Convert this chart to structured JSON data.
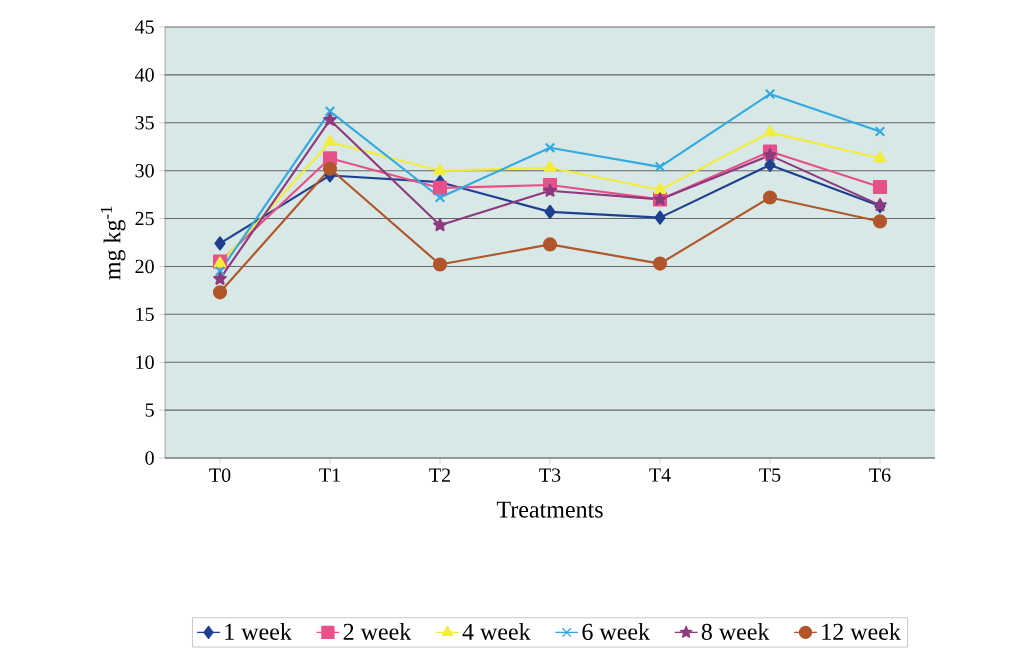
{
  "chart_data": {
    "type": "line",
    "xlabel": "Treatments",
    "ylabel": "mg kg$^{-1}$",
    "categories": [
      "T0",
      "T1",
      "T2",
      "T3",
      "T4",
      "T5",
      "T6"
    ],
    "ylim": [
      0,
      45
    ],
    "yticks": [
      0,
      5,
      10,
      15,
      20,
      25,
      30,
      35,
      40,
      45
    ],
    "grid": "y",
    "legend": "bottom",
    "line_style": "solid",
    "series": [
      {
        "name": "1 week",
        "color": "#1f3f8f",
        "marker": "diamond",
        "values": [
          22.4,
          29.5,
          28.8,
          25.7,
          25.1,
          30.6,
          26.3
        ]
      },
      {
        "name": "2 week",
        "color": "#e8508a",
        "marker": "square",
        "values": [
          20.5,
          31.3,
          28.2,
          28.5,
          27.0,
          32.0,
          28.3
        ]
      },
      {
        "name": "4 week",
        "color": "#f2ec3a",
        "marker": "triangle",
        "values": [
          20.3,
          33.0,
          30.0,
          30.3,
          28.0,
          34.0,
          31.3
        ]
      },
      {
        "name": "6 week",
        "color": "#33aadf",
        "marker": "cross",
        "values": [
          19.5,
          36.2,
          27.2,
          32.4,
          30.4,
          38.0,
          34.1
        ]
      },
      {
        "name": "8 week",
        "color": "#8e3a7e",
        "marker": "star",
        "values": [
          18.7,
          35.3,
          24.3,
          27.9,
          27.0,
          31.6,
          26.4
        ]
      },
      {
        "name": "12 week",
        "color": "#b0562a",
        "marker": "circle",
        "values": [
          17.3,
          30.2,
          20.2,
          22.3,
          20.3,
          27.2,
          24.7
        ]
      }
    ]
  }
}
